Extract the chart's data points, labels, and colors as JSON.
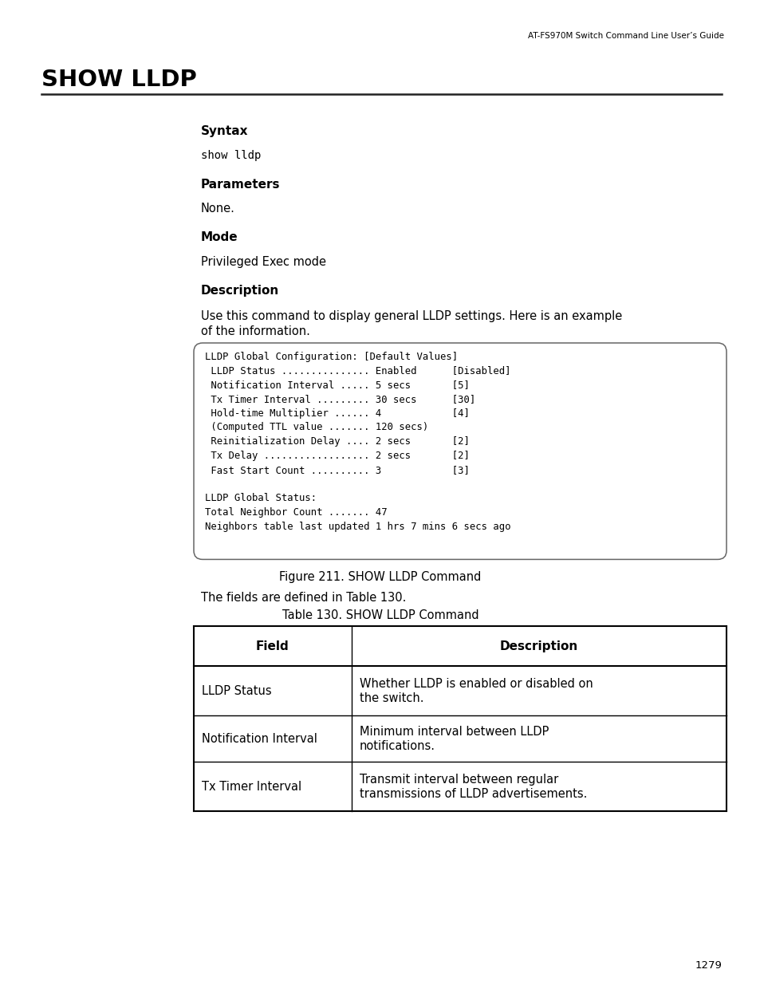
{
  "header_text": "AT-FS970M Switch Command Line User’s Guide",
  "title": "SHOW LLDP",
  "syntax_label": "Syntax",
  "syntax_text": "show lldp",
  "parameters_label": "Parameters",
  "parameters_text": "None.",
  "mode_label": "Mode",
  "mode_text": "Privileged Exec mode",
  "description_label": "Description",
  "description_text_1": "Use this command to display general LLDP settings. Here is an example",
  "description_text_2": "of the information.",
  "code_lines": [
    "LLDP Global Configuration: [Default Values]",
    " LLDP Status ............... Enabled      [Disabled]",
    " Notification Interval ..... 5 secs       [5]",
    " Tx Timer Interval ......... 30 secs      [30]",
    " Hold-time Multiplier ...... 4            [4]",
    " (Computed TTL value ....... 120 secs)",
    " Reinitialization Delay .... 2 secs       [2]",
    " Tx Delay .................. 2 secs       [2]",
    " Fast Start Count .......... 3            [3]",
    "",
    "LLDP Global Status:",
    "Total Neighbor Count ....... 47",
    "Neighbors table last updated 1 hrs 7 mins 6 secs ago"
  ],
  "figure_caption": "Figure 211. SHOW LLDP Command",
  "table_intro": "The fields are defined in Table 130.",
  "table_caption": "Table 130. SHOW LLDP Command",
  "table_headers": [
    "Field",
    "Description"
  ],
  "table_rows": [
    [
      "LLDP Status",
      "Whether LLDP is enabled or disabled on\nthe switch."
    ],
    [
      "Notification Interval",
      "Minimum interval between LLDP\nnotifications."
    ],
    [
      "Tx Timer Interval",
      "Transmit interval between regular\ntransmissions of LLDP advertisements."
    ]
  ],
  "page_number": "1279",
  "bg_color": "#ffffff",
  "text_color": "#000000"
}
